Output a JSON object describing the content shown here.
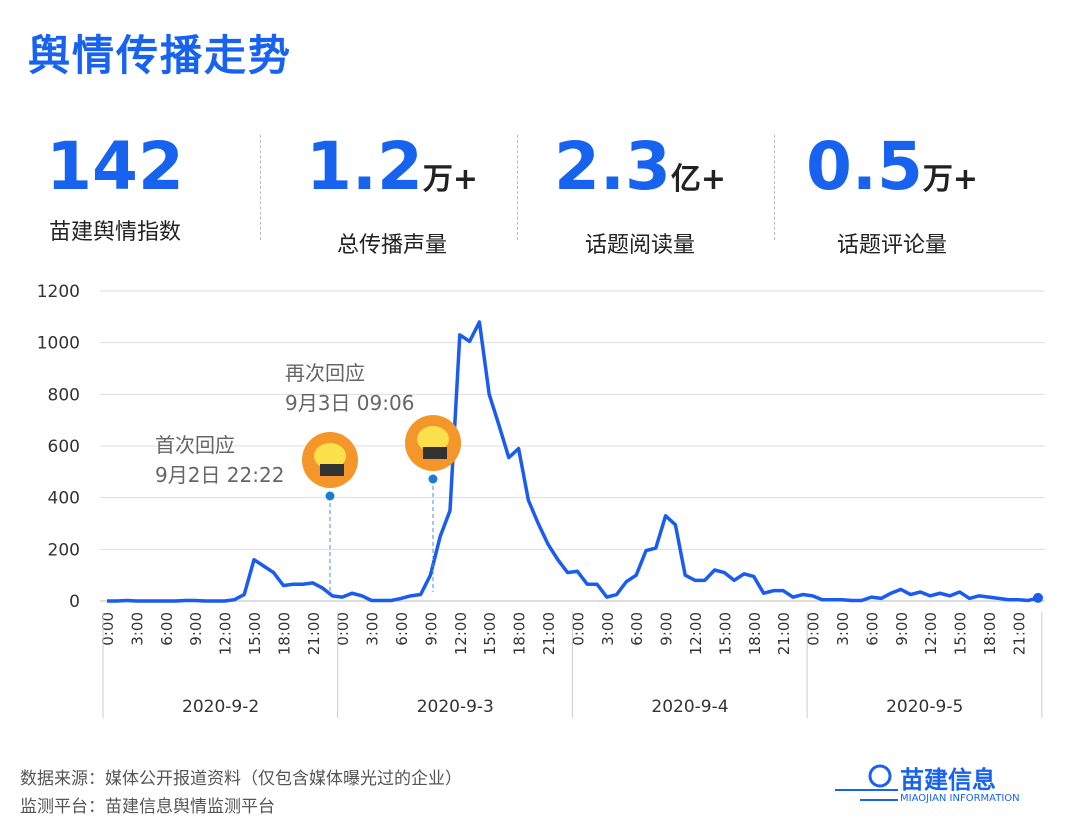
{
  "header": {
    "title": "舆情传播走势"
  },
  "stats": [
    {
      "value": "142",
      "label": "苗建舆情指数"
    },
    {
      "value": "1.2",
      "unit": "万+",
      "label": "总传播声量"
    },
    {
      "value": "2.3",
      "unit": "亿+",
      "label": "话题阅读量"
    },
    {
      "value": "0.5",
      "unit": "万+",
      "label": "话题评论量"
    }
  ],
  "chart_data": {
    "type": "line",
    "color": "#1a5cf0",
    "ylim": [
      0,
      1200
    ],
    "yticks": [
      0,
      200,
      400,
      600,
      800,
      1000,
      1200
    ],
    "grid": true,
    "days": [
      "2020-9-2",
      "2020-9-3",
      "2020-9-4",
      "2020-9-5"
    ],
    "categories": [
      "0:00",
      null,
      null,
      "3:00",
      null,
      null,
      "6:00",
      null,
      null,
      "9:00",
      null,
      null,
      "12:00",
      null,
      null,
      "15:00",
      null,
      null,
      "18:00",
      null,
      null,
      "21:00",
      null,
      null,
      "0:00",
      null,
      null,
      "3:00",
      null,
      null,
      "6:00",
      null,
      null,
      "9:00",
      null,
      null,
      "12:00",
      null,
      null,
      "15:00",
      null,
      null,
      "18:00",
      null,
      null,
      "21:00",
      null,
      null,
      "0:00",
      null,
      null,
      "3:00",
      null,
      null,
      "6:00",
      null,
      null,
      "9:00",
      null,
      null,
      "12:00",
      null,
      null,
      "15:00",
      null,
      null,
      "18:00",
      null,
      null,
      "21:00",
      null,
      null,
      "0:00",
      null,
      null,
      "3:00",
      null,
      null,
      "6:00",
      null,
      null,
      "9:00",
      null,
      null,
      "12:00",
      null,
      null,
      "15:00",
      null,
      null,
      "18:00",
      null,
      null,
      "21:00",
      null,
      null
    ],
    "values": [
      0,
      0,
      2,
      0,
      0,
      0,
      0,
      0,
      2,
      2,
      0,
      0,
      0,
      5,
      25,
      160,
      135,
      110,
      60,
      65,
      65,
      70,
      50,
      20,
      15,
      30,
      20,
      2,
      2,
      2,
      10,
      20,
      25,
      100,
      250,
      350,
      1030,
      1005,
      1080,
      800,
      680,
      555,
      590,
      390,
      300,
      220,
      160,
      110,
      115,
      65,
      65,
      15,
      25,
      75,
      100,
      195,
      205,
      330,
      295,
      100,
      80,
      80,
      120,
      110,
      80,
      105,
      95,
      30,
      40,
      40,
      15,
      25,
      20,
      5,
      5,
      5,
      2,
      2,
      15,
      10,
      30,
      45,
      25,
      35,
      20,
      30,
      20,
      35,
      10,
      20,
      15,
      10,
      5,
      5,
      2,
      12
    ],
    "annotations": [
      {
        "title": "首次回应",
        "time": "9月2日 22:22"
      },
      {
        "title": "再次回应",
        "time": "9月3日 09:06"
      }
    ]
  },
  "footer": {
    "source": "数据来源：媒体公开报道资料（仅包含媒体曝光过的企业）",
    "platform": "监测平台：苗建信息舆情监测平台",
    "logo": "苗建信息",
    "logo_en": "MIAOJIAN INFORMATION"
  }
}
